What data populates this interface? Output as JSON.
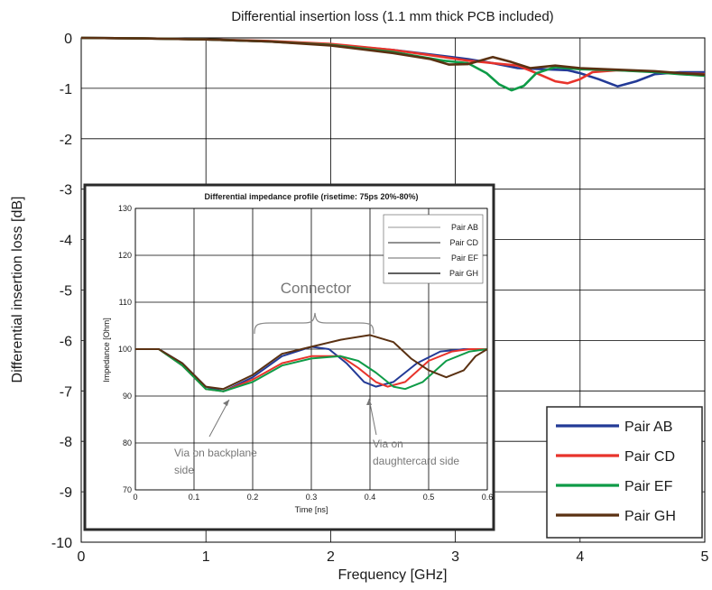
{
  "colors": {
    "pair_ab": "#233a96",
    "pair_cd": "#e8332b",
    "pair_ef": "#0e9b47",
    "pair_gh": "#5a3112",
    "inset_pair_ab": "#b9b9b9",
    "inset_pair_cd": "#6f6f6f",
    "inset_pair_ef": "#9b9b9b",
    "inset_pair_gh": "#2b2b2b",
    "annotation": "#777777"
  },
  "chart_data": [
    {
      "type": "line",
      "title": "Differential insertion loss (1.1 mm thick PCB included)",
      "xlabel": "Frequency [GHz]",
      "ylabel": "Differential insertion loss [dB]",
      "xlim": [
        0,
        5
      ],
      "ylim": [
        -10,
        0
      ],
      "xticks": [
        "0",
        "1",
        "2",
        "3",
        "4",
        "5"
      ],
      "yticks": [
        "0",
        "-1",
        "-2",
        "-3",
        "-4",
        "-5",
        "-6",
        "-7",
        "-8",
        "-9",
        "-10"
      ],
      "grid": true,
      "legend_position": "bottom-right",
      "series": [
        {
          "name": "Pair AB",
          "color_key": "pair_ab",
          "x": [
            0,
            0.5,
            1.0,
            1.5,
            2.0,
            2.5,
            2.9,
            3.1,
            3.3,
            3.5,
            3.7,
            3.9,
            4.0,
            4.15,
            4.3,
            4.45,
            4.6,
            4.8,
            5.0
          ],
          "y": [
            0,
            -0.01,
            -0.03,
            -0.07,
            -0.13,
            -0.24,
            -0.36,
            -0.42,
            -0.5,
            -0.6,
            -0.62,
            -0.64,
            -0.7,
            -0.82,
            -0.96,
            -0.86,
            -0.72,
            -0.68,
            -0.68
          ]
        },
        {
          "name": "Pair CD",
          "color_key": "pair_cd",
          "x": [
            0,
            0.5,
            1.0,
            1.5,
            2.0,
            2.5,
            2.9,
            3.1,
            3.3,
            3.5,
            3.65,
            3.8,
            3.9,
            4.0,
            4.1,
            4.3,
            4.6,
            4.8,
            5.0
          ],
          "y": [
            0,
            -0.01,
            -0.03,
            -0.06,
            -0.12,
            -0.24,
            -0.38,
            -0.45,
            -0.5,
            -0.55,
            -0.7,
            -0.86,
            -0.9,
            -0.82,
            -0.68,
            -0.64,
            -0.67,
            -0.7,
            -0.72
          ]
        },
        {
          "name": "Pair EF",
          "color_key": "pair_ef",
          "x": [
            0,
            0.5,
            1.0,
            1.5,
            2.0,
            2.5,
            2.9,
            3.1,
            3.25,
            3.35,
            3.45,
            3.55,
            3.65,
            3.8,
            4.0,
            4.3,
            4.6,
            4.8,
            5.0
          ],
          "y": [
            0,
            -0.01,
            -0.03,
            -0.07,
            -0.14,
            -0.28,
            -0.45,
            -0.5,
            -0.7,
            -0.92,
            -1.04,
            -0.95,
            -0.7,
            -0.58,
            -0.62,
            -0.64,
            -0.68,
            -0.72,
            -0.75
          ]
        },
        {
          "name": "Pair GH",
          "color_key": "pair_gh",
          "x": [
            0,
            0.5,
            1.0,
            1.5,
            2.0,
            2.5,
            2.8,
            2.95,
            3.1,
            3.3,
            3.45,
            3.6,
            3.8,
            4.0,
            4.2,
            4.4,
            4.6,
            4.8,
            5.0
          ],
          "y": [
            0,
            -0.01,
            -0.03,
            -0.07,
            -0.15,
            -0.3,
            -0.42,
            -0.53,
            -0.52,
            -0.38,
            -0.48,
            -0.6,
            -0.55,
            -0.6,
            -0.62,
            -0.64,
            -0.66,
            -0.7,
            -0.73
          ]
        }
      ]
    },
    {
      "type": "line",
      "title": "Differential impedance profile (risetime: 75ps 20%-80%)",
      "xlabel": "Time [ns]",
      "ylabel": "Impedance [Ohm]",
      "xlim": [
        0,
        0.6
      ],
      "ylim": [
        70,
        130
      ],
      "xticks": [
        "0",
        "0.1",
        "0.2",
        "0.3",
        "0.4",
        "0.5",
        "0.6"
      ],
      "yticks": [
        "70",
        "80",
        "90",
        "100",
        "110",
        "120",
        "130"
      ],
      "grid": true,
      "legend_position": "top-right",
      "annotations": {
        "connector": "Connector",
        "via_backplane_line1": "Via on backplane",
        "via_backplane_line2": "side",
        "via_daughtercard_line1": "Via on",
        "via_daughtercard_line2": "daughtercard side"
      },
      "series": [
        {
          "name": "Pair AB",
          "color_key": "pair_ab",
          "x": [
            0,
            0.04,
            0.08,
            0.12,
            0.15,
            0.2,
            0.25,
            0.3,
            0.33,
            0.36,
            0.39,
            0.41,
            0.44,
            0.48,
            0.52,
            0.56,
            0.6
          ],
          "y": [
            100,
            100,
            97,
            92,
            91,
            94,
            98.5,
            100.5,
            100,
            97,
            93,
            92,
            93,
            97,
            99.5,
            100,
            100
          ]
        },
        {
          "name": "Pair CD",
          "color_key": "pair_cd",
          "x": [
            0,
            0.04,
            0.08,
            0.12,
            0.15,
            0.2,
            0.25,
            0.3,
            0.35,
            0.38,
            0.41,
            0.43,
            0.46,
            0.5,
            0.54,
            0.57,
            0.6
          ],
          "y": [
            100,
            100,
            96.5,
            91.5,
            91,
            93.5,
            97,
            98.5,
            98.5,
            96,
            93,
            92,
            93,
            97.5,
            99.5,
            100,
            100
          ]
        },
        {
          "name": "Pair EF",
          "color_key": "pair_ef",
          "x": [
            0,
            0.04,
            0.08,
            0.12,
            0.15,
            0.2,
            0.25,
            0.3,
            0.35,
            0.38,
            0.41,
            0.44,
            0.46,
            0.49,
            0.53,
            0.57,
            0.6
          ],
          "y": [
            100,
            100,
            96.5,
            91.5,
            91,
            93,
            96.5,
            98,
            98.5,
            97.5,
            95,
            92,
            91.5,
            93,
            97.5,
            99.5,
            100
          ]
        },
        {
          "name": "Pair GH",
          "color_key": "pair_gh",
          "x": [
            0,
            0.04,
            0.08,
            0.12,
            0.15,
            0.2,
            0.25,
            0.3,
            0.35,
            0.4,
            0.44,
            0.47,
            0.5,
            0.53,
            0.56,
            0.58,
            0.6
          ],
          "y": [
            100,
            100,
            97,
            92,
            91.5,
            94.5,
            99,
            100.5,
            102,
            103,
            101.5,
            98,
            95.5,
            94,
            95.5,
            98.5,
            100
          ]
        }
      ]
    }
  ]
}
